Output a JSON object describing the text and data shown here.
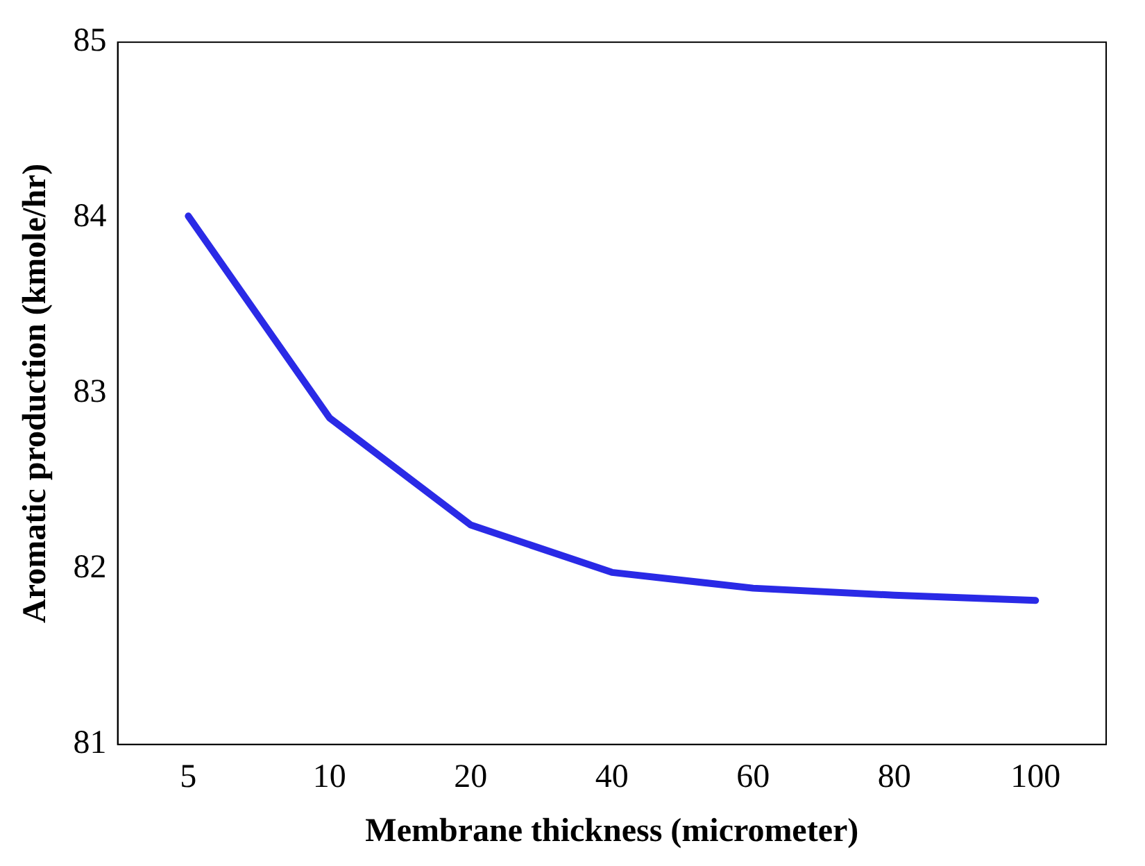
{
  "chart_data": {
    "type": "line",
    "xlabel": "Membrane thickness (micrometer)",
    "ylabel": "Aromatic production (kmole/hr)",
    "categories": [
      "5",
      "10",
      "20",
      "40",
      "60",
      "80",
      "100"
    ],
    "series": [
      {
        "color": "#2a2ae6",
        "values": [
          84.01,
          82.86,
          82.25,
          81.98,
          81.89,
          81.85,
          81.82
        ]
      }
    ],
    "ylim": [
      81,
      85
    ],
    "yticks": [
      81,
      82,
      83,
      84,
      85
    ],
    "grid": false,
    "legend": false,
    "marker": "none",
    "line_style": "solid"
  }
}
